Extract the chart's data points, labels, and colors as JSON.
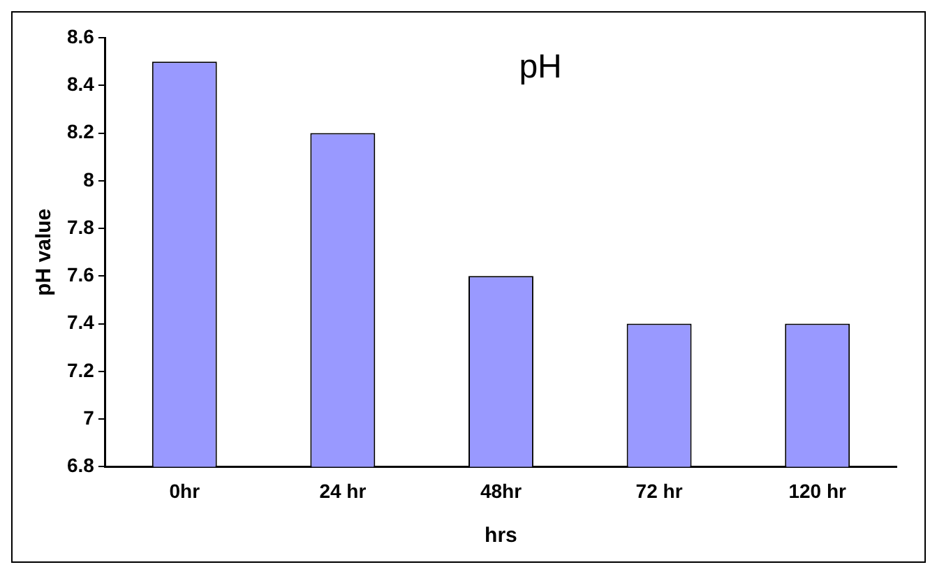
{
  "chart_data": {
    "type": "bar",
    "title": "pH",
    "xlabel": "hrs",
    "ylabel": "pH value",
    "categories": [
      "0hr",
      "24 hr",
      "48hr",
      "72 hr",
      "120 hr"
    ],
    "values": [
      8.5,
      8.2,
      7.6,
      7.4,
      7.4
    ],
    "color": "#9999ff",
    "ylim": [
      6.8,
      8.6
    ],
    "yticks": [
      6.8,
      7,
      7.2,
      7.4,
      7.6,
      7.8,
      8,
      8.2,
      8.4,
      8.6
    ],
    "grid": false,
    "legend": false
  }
}
